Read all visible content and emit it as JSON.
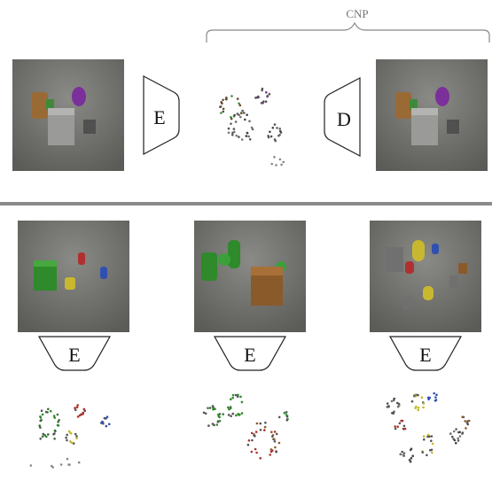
{
  "top_row": {
    "cnp_label": "CNP",
    "encoder_label": "E",
    "decoder_label": "D"
  },
  "bottom_row": {
    "encoders": [
      {
        "label": "E"
      },
      {
        "label": "E"
      },
      {
        "label": "E"
      }
    ]
  },
  "colors": {
    "divider": "#8a8a8a",
    "bracket": "#888888",
    "scene_bg": "#6e6e6a"
  }
}
